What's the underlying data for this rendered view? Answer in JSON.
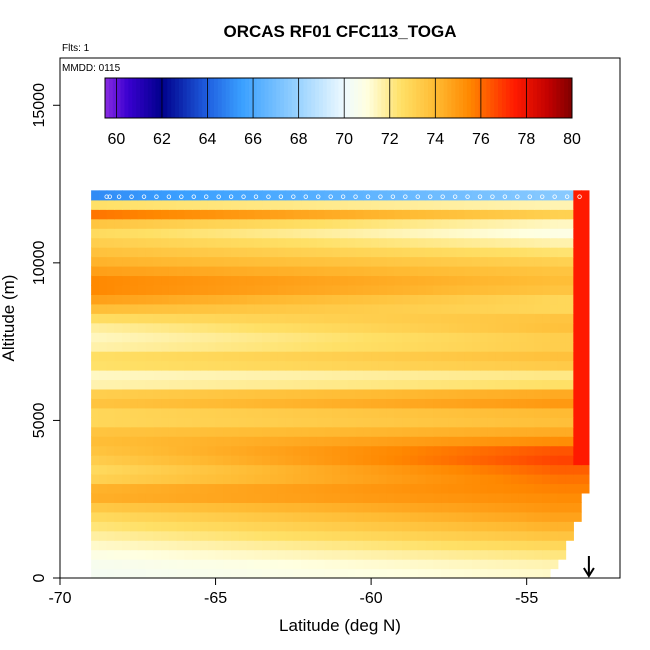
{
  "chart_data": {
    "type": "heatmap",
    "title": "ORCAS RF01 CFC113_TOGA",
    "flights_label": "Flts: 1",
    "date_label": "MMDD: 0115",
    "xlabel": "Latitude (deg N)",
    "ylabel": "Altitude (m)",
    "xlim": [
      -70,
      -52
    ],
    "ylim": [
      0,
      16500
    ],
    "x_ticks": [
      -70,
      -65,
      -60,
      -55
    ],
    "y_ticks": [
      0,
      5000,
      10000,
      15000
    ],
    "colorbar": {
      "min": 59.5,
      "max": 80,
      "ticks": [
        60,
        62,
        64,
        66,
        68,
        70,
        72,
        74,
        76,
        78,
        80
      ],
      "stops": [
        {
          "v": 59.5,
          "c": "#8a2be2"
        },
        {
          "v": 60.5,
          "c": "#3a00d0"
        },
        {
          "v": 62,
          "c": "#00008b"
        },
        {
          "v": 64,
          "c": "#1f5fe0"
        },
        {
          "v": 65.5,
          "c": "#3aa0ff"
        },
        {
          "v": 68,
          "c": "#9ad3ff"
        },
        {
          "v": 70,
          "c": "#eefaff"
        },
        {
          "v": 71,
          "c": "#ffffe0"
        },
        {
          "v": 72.5,
          "c": "#ffe066"
        },
        {
          "v": 74,
          "c": "#ffbb33"
        },
        {
          "v": 75.5,
          "c": "#ff8800"
        },
        {
          "v": 77.5,
          "c": "#ff1a00"
        },
        {
          "v": 79,
          "c": "#c00000"
        },
        {
          "v": 80,
          "c": "#800000"
        }
      ]
    },
    "layers": [
      {
        "alt": 300,
        "left": 70.4,
        "right": 71.3
      },
      {
        "alt": 900,
        "left": 71.0,
        "right": 72.5
      },
      {
        "alt": 1500,
        "left": 72.0,
        "right": 74.0
      },
      {
        "alt": 2100,
        "left": 73.0,
        "right": 75.0
      },
      {
        "alt": 2700,
        "left": 74.8,
        "right": 75.5
      },
      {
        "alt": 3300,
        "left": 72.5,
        "right": 76.0
      },
      {
        "alt": 3900,
        "left": 73.5,
        "right": 77.0
      },
      {
        "alt": 4500,
        "left": 74.0,
        "right": 74.8
      },
      {
        "alt": 5100,
        "left": 72.5,
        "right": 73.5
      },
      {
        "alt": 5700,
        "left": 74.0,
        "right": 75.5
      },
      {
        "alt": 6300,
        "left": 70.8,
        "right": 71.5
      },
      {
        "alt": 6900,
        "left": 73.0,
        "right": 74.0
      },
      {
        "alt": 7500,
        "left": 71.2,
        "right": 73.0
      },
      {
        "alt": 8100,
        "left": 72.0,
        "right": 74.0
      },
      {
        "alt": 8700,
        "left": 74.5,
        "right": 72.5
      },
      {
        "alt": 9300,
        "left": 75.8,
        "right": 74.0
      },
      {
        "alt": 9900,
        "left": 74.5,
        "right": 73.5
      },
      {
        "alt": 10500,
        "left": 73.5,
        "right": 72.0
      },
      {
        "alt": 11100,
        "left": 72.5,
        "right": 70.5
      },
      {
        "alt": 11700,
        "left": 77.0,
        "right": 74.0
      },
      {
        "alt": 12100,
        "left": 65.0,
        "right": 67.5
      }
    ],
    "flight_track_right_value": 77.5,
    "arrow_latitude": -53,
    "grid": false,
    "legend": "top colorbar"
  }
}
